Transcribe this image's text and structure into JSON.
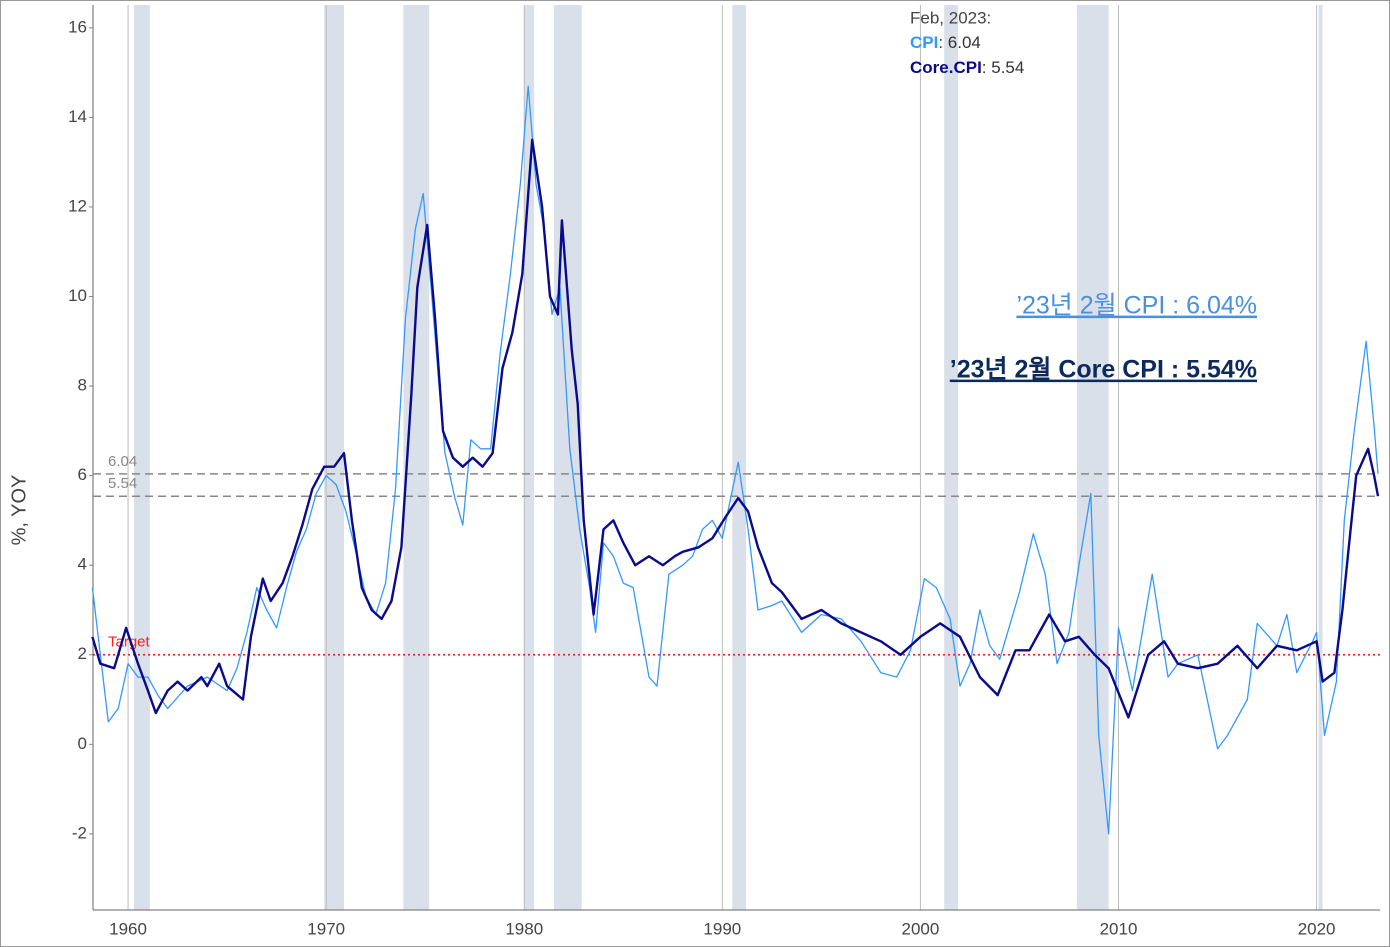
{
  "chart_data": {
    "type": "line",
    "y_label": "%, YOY",
    "xlim": [
      1958.23,
      2023.2
    ],
    "ylim": [
      -3.7,
      16.51
    ],
    "xticks": [
      1960,
      1970,
      1980,
      1990,
      2000,
      2010,
      2020
    ],
    "yticks": [
      -2,
      0,
      2,
      4,
      6,
      8,
      10,
      12,
      14,
      16
    ],
    "grid": true,
    "legend_date": "Feb, 2023:",
    "legend_values": [
      ": 6.04",
      ": 5.54"
    ],
    "recessions": [
      [
        1960.3,
        1961.1
      ],
      [
        1969.9,
        1970.9
      ],
      [
        1973.9,
        1975.2
      ],
      [
        1980.0,
        1980.5
      ],
      [
        1981.5,
        1982.9
      ],
      [
        1990.5,
        1991.2
      ],
      [
        2001.2,
        2001.9
      ],
      [
        2007.9,
        2009.5
      ],
      [
        2020.1,
        2020.3
      ]
    ],
    "reference_lines": [
      6.04,
      5.54
    ],
    "target": {
      "value": 2,
      "label": "Target",
      "color": "#ff2020"
    },
    "notes": [
      {
        "text": "’23년 2월 CPI : 6.04%",
        "color": "#4a8fe0"
      },
      {
        "text": "’23년 2월 Core CPI : 5.54%",
        "color": "#0d2a5c"
      }
    ],
    "series": [
      {
        "name": "CPI",
        "color": "#3399ff",
        "width": 1.3,
        "x": [
          1958.2,
          1959.0,
          1959.5,
          1960.0,
          1960.5,
          1961,
          1961.5,
          1962,
          1963,
          1964,
          1965,
          1965.5,
          1966,
          1966.5,
          1967,
          1967.5,
          1968,
          1968.5,
          1969,
          1969.5,
          1970,
          1970.5,
          1971,
          1971.5,
          1972,
          1972.5,
          1973,
          1973.5,
          1974,
          1974.5,
          1974.9,
          1975.3,
          1975.7,
          1976.0,
          1976.5,
          1976.9,
          1977.3,
          1977.8,
          1978.3,
          1978.8,
          1979.3,
          1979.8,
          1980.2,
          1980.6,
          1981.0,
          1981.4,
          1981.8,
          1982.3,
          1982.8,
          1983.3,
          1983.6,
          1984.0,
          1984.5,
          1985,
          1985.5,
          1986.3,
          1986.7,
          1987.3,
          1988,
          1988.5,
          1989,
          1989.5,
          1990,
          1990.8,
          1991.3,
          1991.8,
          1992.5,
          1993,
          1994,
          1995,
          1996,
          1997,
          1998,
          1998.8,
          1999.5,
          2000.2,
          2000.8,
          2001.5,
          2002,
          2002.5,
          2003,
          2003.5,
          2004,
          2005,
          2005.7,
          2006.3,
          2006.9,
          2007.5,
          2008,
          2008.6,
          2009.0,
          2009.5,
          2010,
          2010.7,
          2011.7,
          2012.5,
          2013,
          2014,
          2015,
          2015.5,
          2016.5,
          2017,
          2018,
          2018.5,
          2019,
          2019.8,
          2020.0,
          2020.4,
          2021,
          2021.4,
          2021.9,
          2022.5,
          2022.9,
          2023.1
        ],
        "values": [
          3.5,
          0.5,
          0.8,
          1.8,
          1.5,
          1.5,
          1.1,
          0.8,
          1.3,
          1.5,
          1.2,
          1.7,
          2.5,
          3.5,
          3.0,
          2.6,
          3.5,
          4.3,
          4.8,
          5.6,
          6.0,
          5.8,
          5.2,
          4.3,
          3.3,
          2.9,
          3.6,
          5.7,
          9.5,
          11.5,
          12.3,
          10.2,
          8.0,
          6.5,
          5.5,
          4.9,
          6.8,
          6.6,
          6.6,
          8.8,
          10.5,
          12.5,
          14.7,
          12.5,
          11.5,
          9.6,
          10.2,
          6.6,
          4.8,
          3.5,
          2.5,
          4.5,
          4.2,
          3.6,
          3.5,
          1.5,
          1.3,
          3.8,
          4.0,
          4.2,
          4.8,
          5.0,
          4.6,
          6.3,
          4.8,
          3.0,
          3.1,
          3.2,
          2.5,
          2.9,
          2.8,
          2.3,
          1.6,
          1.5,
          2.1,
          3.7,
          3.5,
          2.8,
          1.3,
          1.8,
          3.0,
          2.2,
          1.9,
          3.4,
          4.7,
          3.8,
          1.8,
          2.5,
          4.0,
          5.6,
          0.2,
          -2.0,
          2.6,
          1.2,
          3.8,
          1.5,
          1.8,
          2.0,
          -0.1,
          0.2,
          1.0,
          2.7,
          2.2,
          2.9,
          1.6,
          2.3,
          2.5,
          0.2,
          1.4,
          5.0,
          7.0,
          9.0,
          7.1,
          6.04
        ]
      },
      {
        "name": "Core.CPI",
        "color": "#0a0a8c",
        "width": 2.4,
        "x": [
          1958.2,
          1958.6,
          1959.3,
          1959.9,
          1960.5,
          1961,
          1961.4,
          1962,
          1962.5,
          1963,
          1963.7,
          1964,
          1964.6,
          1965,
          1965.8,
          1966.2,
          1966.8,
          1967.2,
          1967.8,
          1968.3,
          1968.8,
          1969.3,
          1969.9,
          1970.4,
          1970.9,
          1971.3,
          1971.8,
          1972.3,
          1972.8,
          1973.3,
          1973.8,
          1974.3,
          1974.6,
          1975.1,
          1975.5,
          1975.9,
          1976.4,
          1976.9,
          1977.4,
          1977.9,
          1978.4,
          1978.9,
          1979.4,
          1979.9,
          1980.4,
          1980.9,
          1981.3,
          1981.7,
          1981.9,
          1982.4,
          1982.7,
          1983.0,
          1983.5,
          1984.0,
          1984.5,
          1985,
          1985.6,
          1986.3,
          1987,
          1987.6,
          1988,
          1988.8,
          1989.5,
          1990.2,
          1990.8,
          1991.3,
          1991.8,
          1992.5,
          1993,
          1994,
          1995,
          1996,
          1997,
          1998,
          1999,
          2000,
          2001,
          2002,
          2003,
          2003.9,
          2004.8,
          2005.5,
          2006.5,
          2007.3,
          2008,
          2008.8,
          2009.5,
          2010.5,
          2011.5,
          2012.3,
          2013,
          2014,
          2015,
          2016,
          2017,
          2018,
          2019,
          2020.0,
          2020.3,
          2020.9,
          2021.3,
          2021.6,
          2022.0,
          2022.6,
          2022.9,
          2023.1
        ],
        "values": [
          2.4,
          1.8,
          1.7,
          2.6,
          1.8,
          1.2,
          0.7,
          1.2,
          1.4,
          1.2,
          1.5,
          1.3,
          1.8,
          1.3,
          1.0,
          2.4,
          3.7,
          3.2,
          3.6,
          4.2,
          4.9,
          5.7,
          6.2,
          6.2,
          6.5,
          5.0,
          3.5,
          3.0,
          2.8,
          3.2,
          4.4,
          7.8,
          10.2,
          11.6,
          9.5,
          7.0,
          6.4,
          6.2,
          6.4,
          6.2,
          6.5,
          8.4,
          9.2,
          10.5,
          13.5,
          12.0,
          10.0,
          9.6,
          11.7,
          8.8,
          7.6,
          5.0,
          2.9,
          4.8,
          5.0,
          4.5,
          4.0,
          4.2,
          4.0,
          4.2,
          4.3,
          4.4,
          4.6,
          5.1,
          5.5,
          5.2,
          4.4,
          3.6,
          3.4,
          2.8,
          3.0,
          2.7,
          2.5,
          2.3,
          2.0,
          2.4,
          2.7,
          2.4,
          1.5,
          1.1,
          2.1,
          2.1,
          2.9,
          2.3,
          2.4,
          2.0,
          1.7,
          0.6,
          2.0,
          2.3,
          1.8,
          1.7,
          1.8,
          2.2,
          1.7,
          2.2,
          2.1,
          2.3,
          1.4,
          1.6,
          3.0,
          4.3,
          6.0,
          6.6,
          6.0,
          5.54
        ]
      }
    ]
  }
}
